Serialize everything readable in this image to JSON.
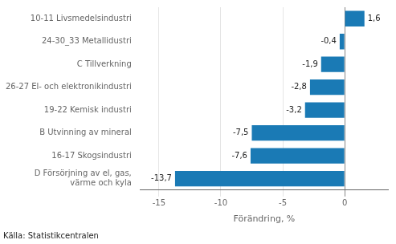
{
  "chart_data": {
    "type": "bar",
    "orientation": "horizontal",
    "categories": [
      "D Försörjning av el, gas,\nvärme och kyla",
      "16-17 Skogsindustri",
      "B Utvinning av mineral",
      "19-22 Kemisk industri",
      "26-27 El- och elektronikindustri",
      "C Tillverkning",
      "24-30_33 Metallidustri",
      "10-11 Livsmedelsindustri"
    ],
    "values": [
      -13.7,
      -7.6,
      -7.5,
      -3.2,
      -2.8,
      -1.9,
      -0.4,
      1.6
    ],
    "value_labels": [
      "-13,7",
      "-7,6",
      "-7,5",
      "-3,2",
      "-2,8",
      "-1,9",
      "-0,4",
      "1,6"
    ],
    "data_labels": true,
    "color": "#1a7ab5",
    "xlabel": "Förändring, %",
    "xlim": [
      -16.5,
      3.5
    ],
    "xticks": [
      -15,
      -10,
      -5,
      0
    ],
    "grid": true,
    "annotations": [
      "Källa: Statistikcentralen"
    ]
  }
}
